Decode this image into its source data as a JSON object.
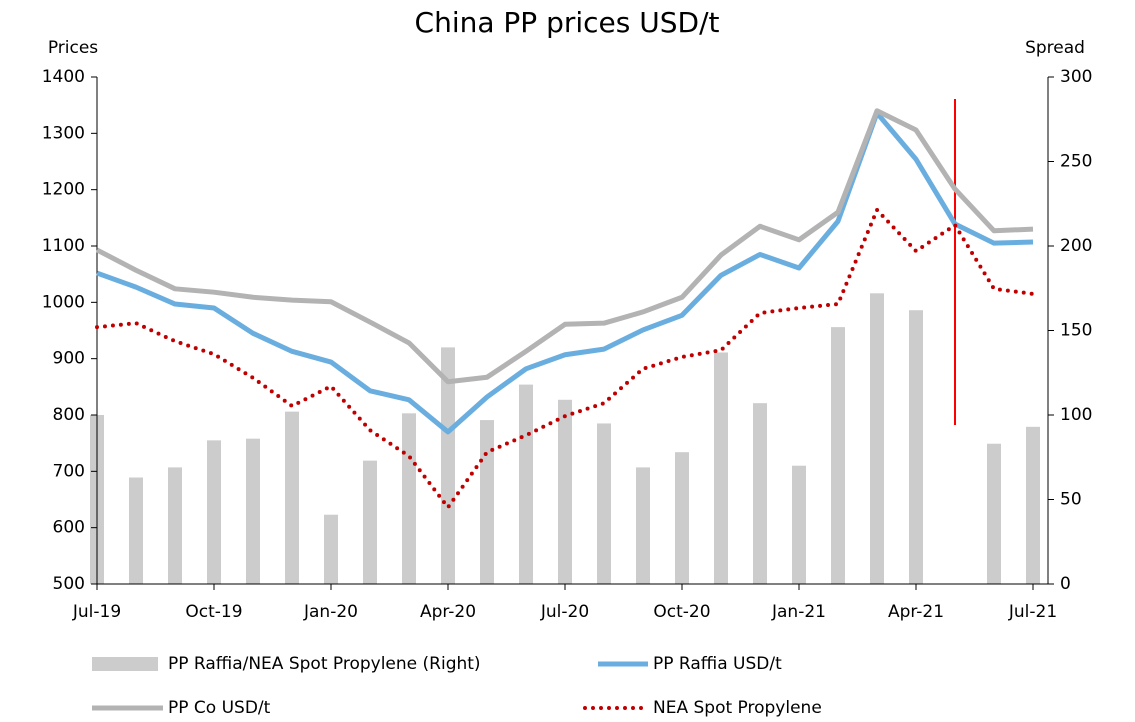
{
  "chart_data": {
    "type": "bar-line",
    "title": "China PP prices USD/t",
    "y_label": "Prices",
    "y2_label": "Spread",
    "categories": [
      "Jul-19",
      null,
      null,
      "Oct-19",
      null,
      null,
      "Jan-20",
      null,
      null,
      "Apr-20",
      null,
      null,
      "Jul-20",
      null,
      null,
      "Oct-20",
      null,
      null,
      "Jan-21",
      null,
      null,
      "Apr-21",
      null,
      null,
      "Jul-21"
    ],
    "ylim": [
      500,
      1400
    ],
    "yticks": [
      500,
      600,
      700,
      800,
      900,
      1000,
      1100,
      1200,
      1300,
      1400
    ],
    "y2lim": [
      0,
      300
    ],
    "y2ticks": [
      0,
      50,
      100,
      150,
      200,
      250,
      300
    ],
    "series": [
      {
        "name": "PP Raffia/NEA Spot Propylene (Right)",
        "kind": "bar",
        "axis": "y2",
        "color": "#cccccc",
        "values": [
          100,
          63,
          69,
          85,
          86,
          102,
          41,
          73,
          101,
          140,
          97,
          118,
          109,
          95,
          69,
          78,
          137,
          107,
          70,
          152,
          172,
          162,
          null,
          83,
          93
        ]
      },
      {
        "name": "PP Raffia USD/t",
        "kind": "line",
        "color": "#6aaee0",
        "values": [
          1052,
          1027,
          997,
          990,
          945,
          913,
          894,
          843,
          827,
          770,
          832,
          882,
          907,
          917,
          951,
          977,
          1048,
          1085,
          1061,
          1144,
          1336,
          1254,
          1139,
          1105,
          1107
        ]
      },
      {
        "name": "PP Co USD/t",
        "kind": "line",
        "color": "#b3b3b3",
        "values": [
          1093,
          1057,
          1024,
          1018,
          1009,
          1004,
          1001,
          965,
          928,
          859,
          867,
          913,
          961,
          963,
          983,
          1009,
          1084,
          1135,
          1111,
          1160,
          1340,
          1306,
          1201,
          1127,
          1130
        ]
      },
      {
        "name": "NEA Spot Propylene",
        "kind": "dotted",
        "color": "#c00000",
        "values": [
          956,
          963,
          931,
          908,
          866,
          816,
          851,
          773,
          727,
          636,
          734,
          764,
          798,
          821,
          882,
          903,
          915,
          981,
          990,
          997,
          1164,
          1091,
          1137,
          1024,
          1015
        ]
      }
    ]
  }
}
